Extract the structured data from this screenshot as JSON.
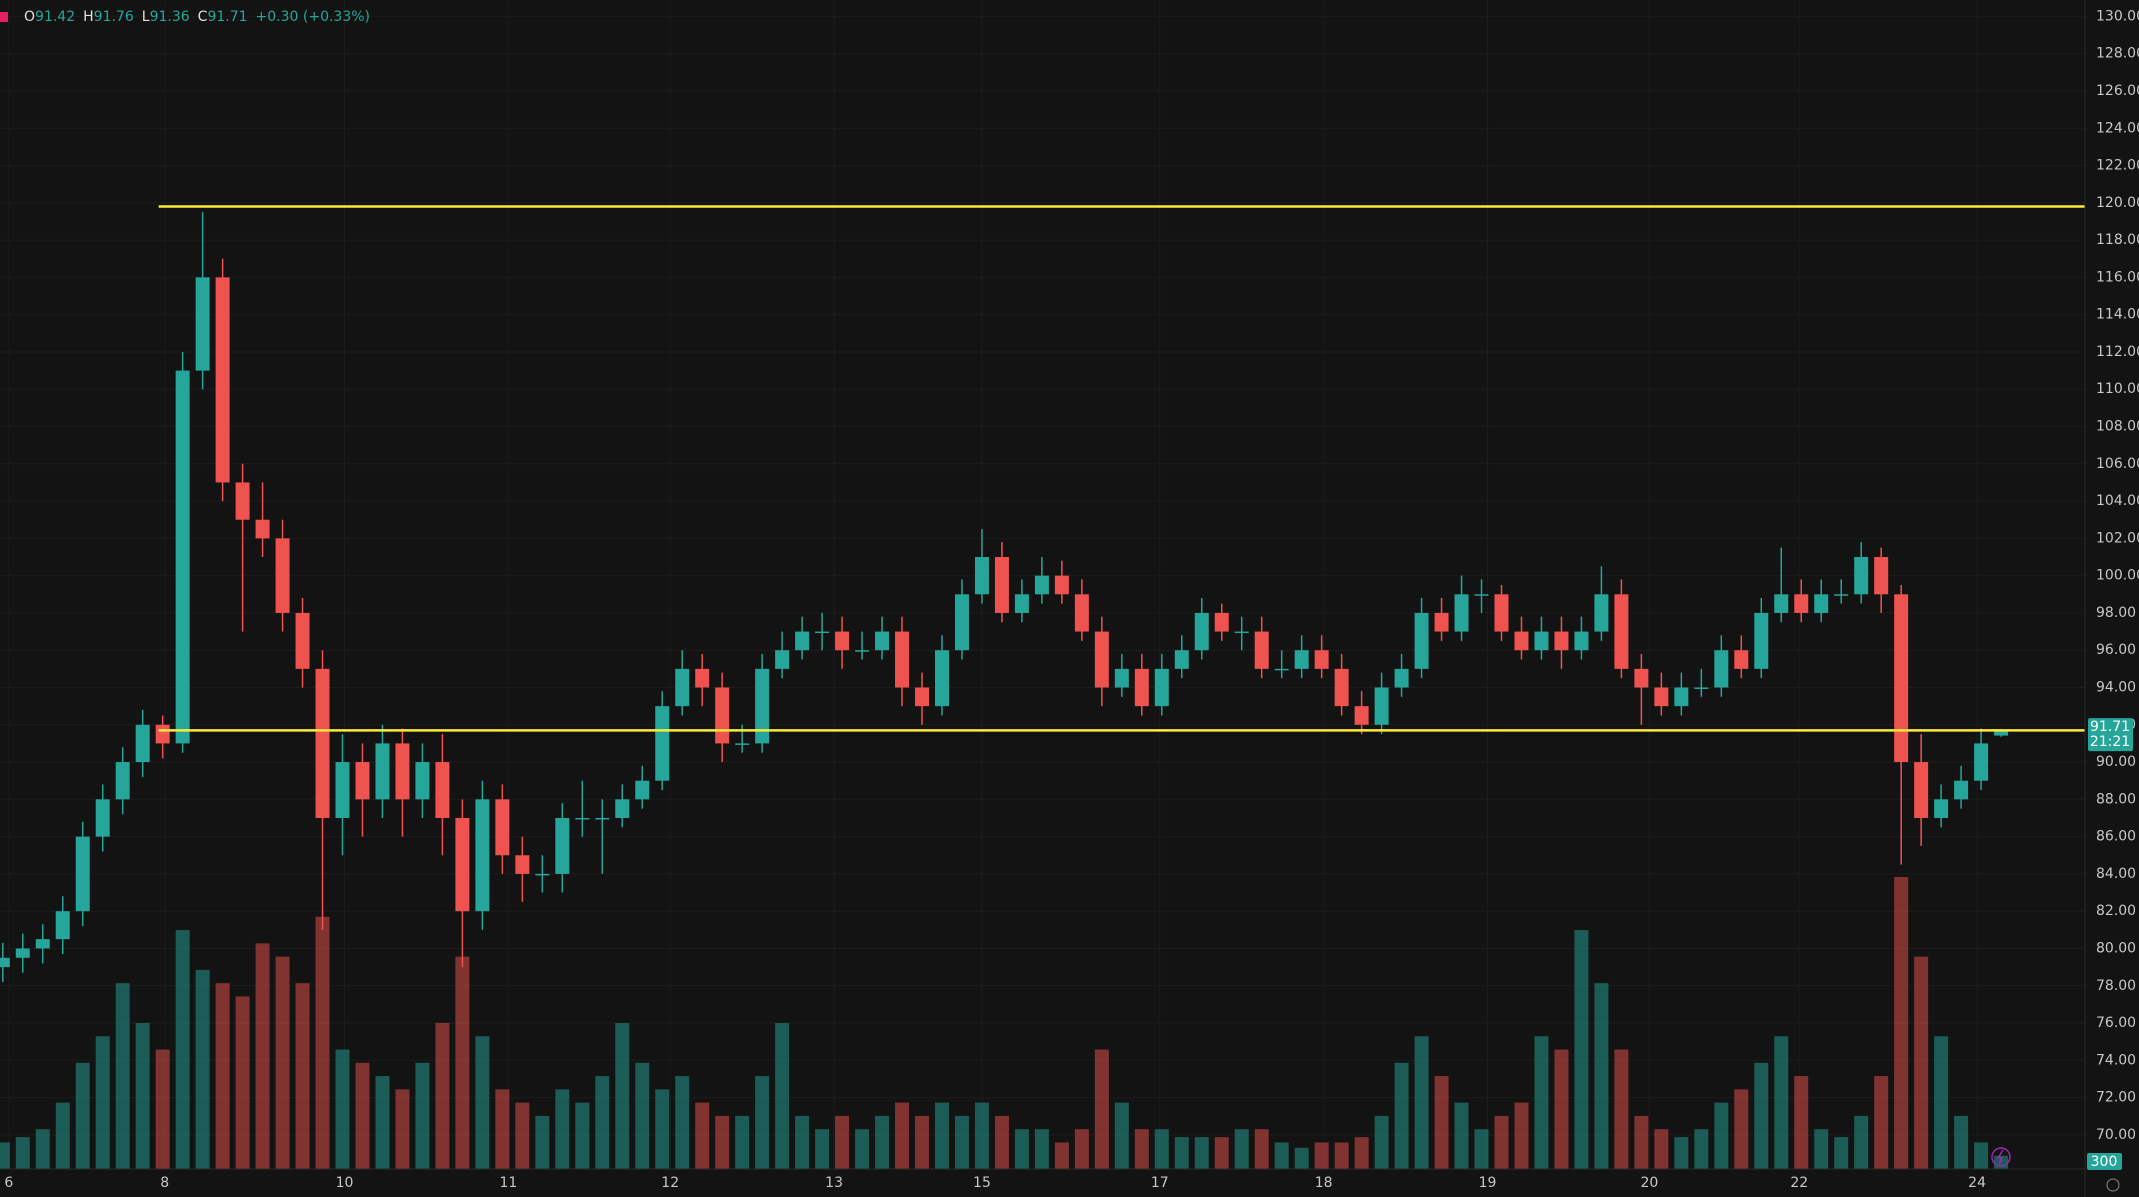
{
  "chart_data": {
    "type": "candlestick",
    "header": [
      {
        "label": "O",
        "value": "91.42"
      },
      {
        "label": "H",
        "value": "91.76"
      },
      {
        "label": "L",
        "value": "91.36"
      },
      {
        "label": "C",
        "value": "91.71"
      }
    ],
    "change": "+0.30 (+0.33%)",
    "up_color": "#26a69a",
    "down_color": "#ef5350",
    "grid": true,
    "xlim": [
      -0.14,
      104.2
    ],
    "xticks": [
      {
        "value": 0.3,
        "label": "6"
      },
      {
        "value": 8.1,
        "label": "8"
      },
      {
        "value": 17.1,
        "label": "10"
      },
      {
        "value": 25.3,
        "label": "11"
      },
      {
        "value": 33.4,
        "label": "12"
      },
      {
        "value": 41.6,
        "label": "13"
      },
      {
        "value": 49,
        "label": "15"
      },
      {
        "value": 57.9,
        "label": "17"
      },
      {
        "value": 66.1,
        "label": "18"
      },
      {
        "value": 74.3,
        "label": "19"
      },
      {
        "value": 82.4,
        "label": "20"
      },
      {
        "value": 89.9,
        "label": "22"
      },
      {
        "value": 98.8,
        "label": "24"
      }
    ],
    "ylim": [
      68.17,
      130.88
    ],
    "yticks": [
      {
        "value": 70,
        "label": "70.00"
      },
      {
        "value": 72,
        "label": "72.00"
      },
      {
        "value": 74,
        "label": "74.00"
      },
      {
        "value": 76,
        "label": "76.00"
      },
      {
        "value": 78,
        "label": "78.00"
      },
      {
        "value": 80,
        "label": "80.00"
      },
      {
        "value": 82,
        "label": "82.00"
      },
      {
        "value": 84,
        "label": "84.00"
      },
      {
        "value": 86,
        "label": "86.00"
      },
      {
        "value": 88,
        "label": "88.00"
      },
      {
        "value": 90,
        "label": "90.00"
      },
      {
        "value": 92,
        "label": "92.00"
      },
      {
        "value": 94,
        "label": "94.00"
      },
      {
        "value": 96,
        "label": "96.00"
      },
      {
        "value": 98,
        "label": "98.00"
      },
      {
        "value": 100,
        "label": "100.00"
      },
      {
        "value": 102,
        "label": "102.00"
      },
      {
        "value": 104,
        "label": "104.00"
      },
      {
        "value": 106,
        "label": "106.00"
      },
      {
        "value": 108,
        "label": "108.00"
      },
      {
        "value": 110,
        "label": "110.00"
      },
      {
        "value": 112,
        "label": "112.00"
      },
      {
        "value": 114,
        "label": "114.00"
      },
      {
        "value": 116,
        "label": "116.00"
      },
      {
        "value": 118,
        "label": "118.00"
      },
      {
        "value": 120,
        "label": "120.00"
      },
      {
        "value": 122,
        "label": "122.00"
      },
      {
        "value": 124,
        "label": "124.00"
      },
      {
        "value": 126,
        "label": "126.00"
      },
      {
        "value": 128,
        "label": "128.00"
      },
      {
        "value": 130,
        "label": "130.00"
      }
    ],
    "hlines": [
      {
        "value": 119.8,
        "from_x": 7.8,
        "color": "#ffeb3b"
      },
      {
        "value": 91.7,
        "from_x": 7.8,
        "color": "#ffeb3b"
      }
    ],
    "open": [
      79,
      79.5,
      80,
      80.5,
      82,
      86,
      88,
      90,
      92,
      91,
      111,
      116,
      105,
      103,
      102,
      98,
      95,
      87,
      90,
      88,
      91,
      88,
      90,
      87,
      82,
      88,
      85,
      84,
      84,
      87,
      87,
      87,
      88,
      89,
      93,
      95,
      94,
      91,
      91,
      95,
      96,
      97,
      97,
      96,
      96,
      97,
      94,
      93,
      96,
      99,
      101,
      98,
      99,
      100,
      99,
      97,
      94,
      95,
      93,
      95,
      96,
      98,
      97,
      97,
      95,
      95,
      96,
      95,
      93,
      92,
      94,
      95,
      98,
      97,
      99,
      99,
      97,
      96,
      97,
      96,
      97,
      99,
      95,
      94,
      93,
      94,
      94,
      96,
      95,
      98,
      99,
      98,
      99,
      99,
      101,
      99,
      90,
      87,
      88,
      89,
      91.42
    ],
    "high": [
      80.3,
      80.8,
      81.3,
      82.8,
      86.8,
      88.8,
      90.8,
      92.8,
      92.5,
      112,
      119.5,
      117,
      106,
      105,
      103,
      98.8,
      96,
      91.5,
      91,
      92,
      91.8,
      91,
      91.5,
      88,
      89,
      88.8,
      86,
      85,
      87.8,
      89,
      88,
      88.8,
      89.8,
      93.8,
      96,
      95.8,
      94.8,
      92,
      95.8,
      97,
      97.8,
      98,
      97.8,
      97,
      97.8,
      97.8,
      94.8,
      96.8,
      99.8,
      102.5,
      101.8,
      99.8,
      101,
      100.8,
      99.8,
      97.8,
      95.8,
      95.8,
      95.8,
      96.8,
      98.8,
      98.5,
      97.8,
      97.8,
      96,
      96.8,
      96.8,
      95.8,
      93.8,
      94.8,
      95.8,
      98.8,
      98.8,
      100,
      99.8,
      99.5,
      97.8,
      97.8,
      97.8,
      97.8,
      100.5,
      99.8,
      95.8,
      94.8,
      94.8,
      95,
      96.8,
      96.8,
      98.8,
      101.5,
      99.8,
      99.8,
      99.8,
      101.8,
      101.5,
      99.5,
      91.5,
      88.8,
      89.8,
      91.8,
      91.76
    ],
    "low": [
      78.2,
      78.7,
      79.2,
      79.7,
      81.2,
      85.2,
      87.2,
      89.2,
      90.2,
      90.5,
      110,
      104,
      97,
      101,
      97,
      94,
      81,
      85,
      86,
      87,
      86,
      87,
      85,
      79,
      81,
      84,
      82.5,
      83,
      83,
      86,
      84,
      86.5,
      87.5,
      88.5,
      92.5,
      93,
      90,
      90.5,
      90.5,
      94.5,
      95.5,
      96,
      95,
      95.5,
      95.5,
      93,
      92,
      92.5,
      95.5,
      98.5,
      97.5,
      97.5,
      98.5,
      98.5,
      96.5,
      93,
      93.5,
      92.5,
      92.5,
      94.5,
      95.5,
      96.5,
      96,
      94.5,
      94.5,
      94.5,
      94.5,
      92.5,
      91.5,
      91.5,
      93.5,
      94.5,
      96.5,
      96.5,
      98,
      96.5,
      95.5,
      95.5,
      95,
      95.5,
      96.5,
      94.5,
      92,
      92.5,
      92.5,
      93.5,
      93.5,
      94.5,
      94.5,
      97.5,
      97.5,
      97.5,
      98.5,
      98.5,
      98,
      84.5,
      85.5,
      86.5,
      87.5,
      88.5,
      91.36
    ],
    "close": [
      79.5,
      80,
      80.5,
      82,
      86,
      88,
      90,
      92,
      91,
      111,
      116,
      105,
      103,
      102,
      98,
      95,
      87,
      90,
      88,
      91,
      88,
      90,
      87,
      82,
      88,
      85,
      84,
      84,
      87,
      87,
      87,
      88,
      89,
      93,
      95,
      94,
      91,
      91,
      95,
      96,
      97,
      97,
      96,
      96,
      97,
      94,
      93,
      96,
      99,
      101,
      98,
      99,
      100,
      99,
      97,
      94,
      95,
      93,
      95,
      96,
      98,
      97,
      97,
      95,
      95,
      96,
      95,
      93,
      92,
      94,
      95,
      98,
      97,
      99,
      99,
      97,
      96,
      97,
      96,
      97,
      99,
      95,
      94,
      93,
      94,
      94,
      96,
      95,
      98,
      99,
      98,
      99,
      99,
      101,
      99,
      90,
      87,
      88,
      89,
      91,
      91.71
    ],
    "volume": [
      10,
      12,
      15,
      25,
      40,
      50,
      70,
      55,
      45,
      90,
      75,
      70,
      65,
      85,
      80,
      70,
      95,
      45,
      40,
      35,
      30,
      40,
      55,
      80,
      50,
      30,
      25,
      20,
      30,
      25,
      35,
      55,
      40,
      30,
      35,
      25,
      20,
      20,
      35,
      55,
      20,
      15,
      20,
      15,
      20,
      25,
      20,
      25,
      20,
      25,
      20,
      15,
      15,
      10,
      15,
      45,
      25,
      15,
      15,
      12,
      12,
      12,
      15,
      15,
      10,
      8,
      10,
      10,
      12,
      20,
      40,
      50,
      35,
      25,
      15,
      20,
      25,
      50,
      45,
      90,
      70,
      45,
      20,
      15,
      12,
      15,
      25,
      30,
      40,
      50,
      35,
      15,
      12,
      20,
      35,
      110,
      80,
      50,
      20,
      10,
      5
    ],
    "last_price_tag": {
      "price": "91.71",
      "countdown": "21:21"
    },
    "volume_tag": "300"
  }
}
